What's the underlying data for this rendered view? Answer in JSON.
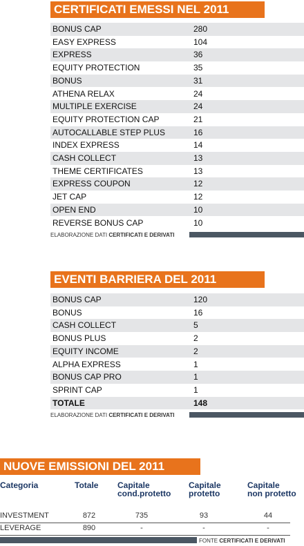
{
  "tables": [
    {
      "title": "CERTIFICATI EMESSI NEL 2011",
      "rows": [
        [
          "BONUS CAP",
          280
        ],
        [
          "EASY EXPRESS",
          104
        ],
        [
          "EXPRESS",
          36
        ],
        [
          "EQUITY PROTECTION",
          35
        ],
        [
          "BONUS",
          31
        ],
        [
          "ATHENA RELAX",
          24
        ],
        [
          "MULTIPLE EXERCISE",
          24
        ],
        [
          "EQUITY PROTECTION CAP",
          21
        ],
        [
          "AUTOCALLABLE STEP PLUS",
          16
        ],
        [
          "INDEX EXPRESS",
          14
        ],
        [
          "CASH COLLECT",
          13
        ],
        [
          "THEME CERTIFICATES",
          13
        ],
        [
          "EXPRESS COUPON",
          12
        ],
        [
          "JET CAP",
          12
        ],
        [
          "OPEN END",
          10
        ],
        [
          "REVERSE BONUS CAP",
          10
        ]
      ],
      "footer": [
        "ELABORAZIONE DATI",
        "CERTIFICATI E DERIVATI"
      ]
    },
    {
      "title": "EVENTI BARRIERA DEL 2011",
      "rows": [
        [
          "BONUS CAP",
          120
        ],
        [
          "BONUS",
          16
        ],
        [
          "CASH COLLECT",
          5
        ],
        [
          "BONUS PLUS",
          2
        ],
        [
          "EQUITY INCOME",
          2
        ],
        [
          "ALPHA EXPRESS",
          1
        ],
        [
          "BONUS CAP PRO",
          1
        ],
        [
          "SPRINT CAP",
          1
        ],
        [
          "TOTALE",
          148
        ]
      ],
      "footer": [
        "ELABORAZIONE DATI",
        "CERTIFICATI E DERIVATI"
      ]
    }
  ],
  "emissions": {
    "title": "NUOVE EMISSIONI DEL 2011",
    "columns": [
      [
        "Categoria"
      ],
      [
        "Totale"
      ],
      [
        "Capitale",
        "cond.protetto"
      ],
      [
        "Capitale",
        "protetto"
      ],
      [
        "Capitale",
        "non protetto"
      ]
    ],
    "rows": [
      [
        "INVESTMENT",
        872,
        735,
        93,
        44
      ],
      [
        "LEVERAGE",
        890,
        "-",
        "-",
        "-"
      ]
    ],
    "footer": [
      "FONTE",
      "CERTIFICATI E DERIVATI"
    ]
  }
}
